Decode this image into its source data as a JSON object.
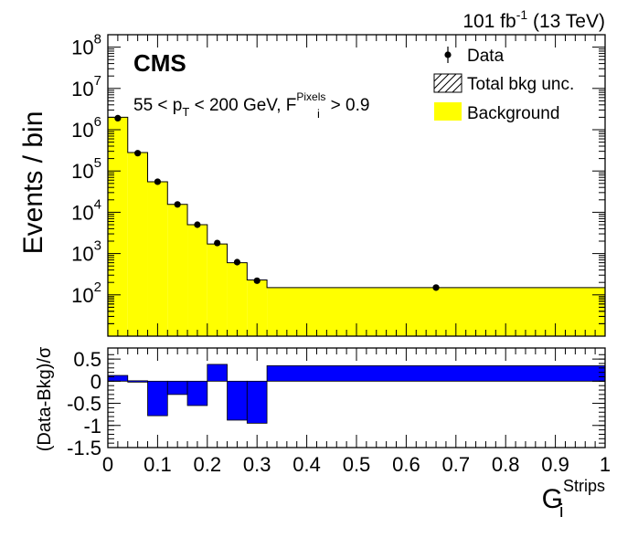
{
  "chart_data": [
    {
      "type": "histogram",
      "title": "",
      "experiment_label": "CMS",
      "luminosity_label": "101 fb",
      "luminosity_exponent": "-1",
      "energy_label": "(13 TeV)",
      "selection_text": {
        "part1": "55 < p",
        "pt_subscript": "T",
        "part2": " < 200 GeV, F",
        "f_subscript": "i",
        "f_superscript": "Pixels",
        "part3": " > 0.9"
      },
      "ylabel": "Events / bin",
      "yscale": "log",
      "ylim": [
        10,
        200000000
      ],
      "y_ticks": [
        {
          "value": 100,
          "base": "10",
          "exp": "2"
        },
        {
          "value": 1000,
          "base": "10",
          "exp": "3"
        },
        {
          "value": 10000,
          "base": "10",
          "exp": "4"
        },
        {
          "value": 100000,
          "base": "10",
          "exp": "5"
        },
        {
          "value": 1000000,
          "base": "10",
          "exp": "6"
        },
        {
          "value": 10000000,
          "base": "10",
          "exp": "7"
        },
        {
          "value": 100000000,
          "base": "10",
          "exp": "8"
        }
      ],
      "xlim": [
        0,
        1
      ],
      "bin_edges": [
        0,
        0.04,
        0.08,
        0.12,
        0.16,
        0.2,
        0.24,
        0.28,
        0.32,
        1.0
      ],
      "background": [
        2000000,
        280000,
        55000,
        15500,
        5000,
        1700,
        600,
        230,
        150
      ],
      "data_points": [
        {
          "x": 0.02,
          "y": 1900000
        },
        {
          "x": 0.06,
          "y": 270000
        },
        {
          "x": 0.1,
          "y": 55000
        },
        {
          "x": 0.14,
          "y": 15500
        },
        {
          "x": 0.18,
          "y": 5000
        },
        {
          "x": 0.22,
          "y": 1800
        },
        {
          "x": 0.26,
          "y": 620
        },
        {
          "x": 0.3,
          "y": 220
        },
        {
          "x": 0.66,
          "y": 150
        }
      ],
      "legend": {
        "position": "top-right",
        "entries": [
          "Data",
          "Total bkg unc.",
          "Background"
        ]
      },
      "colors": {
        "background": "#ffff00",
        "data": "#000000",
        "ratio": "#0000ff"
      }
    },
    {
      "type": "bar",
      "ylabel": "(Data-Bkg)/σ",
      "xlabel": "G",
      "xlabel_subscript": "i",
      "xlabel_superscript": "Strips",
      "ylim": [
        -1.5,
        0.75
      ],
      "xlim": [
        0,
        1
      ],
      "y_ticks": [
        "0.5",
        "0",
        "-0.5",
        "-1",
        "-1.5"
      ],
      "x_ticks": [
        "0",
        "0.1",
        "0.2",
        "0.3",
        "0.4",
        "0.5",
        "0.6",
        "0.7",
        "0.8",
        "0.9",
        "1"
      ],
      "bin_edges": [
        0,
        0.04,
        0.08,
        0.12,
        0.16,
        0.2,
        0.24,
        0.28,
        0.32,
        1.0
      ],
      "values": [
        0.13,
        0.01,
        -0.78,
        -0.3,
        -0.55,
        0.38,
        -0.88,
        -0.95,
        0.35
      ]
    }
  ]
}
